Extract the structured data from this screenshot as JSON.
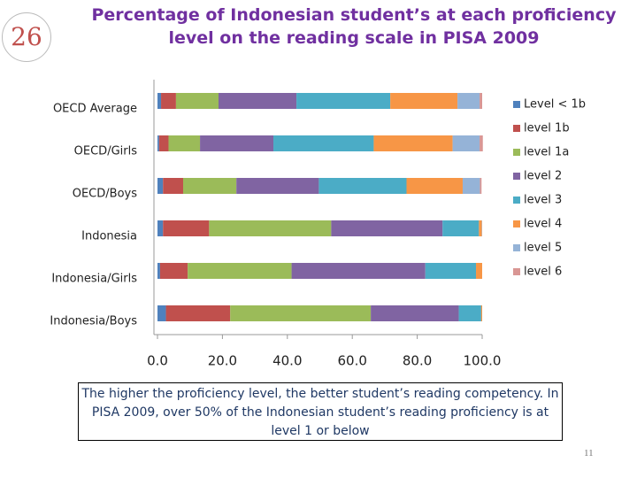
{
  "slide_badge": "26",
  "chart_data": {
    "type": "stacked_barh",
    "title": "Percentage of Indonesian student’s at each proficiency level on the reading scale in PISA 2009",
    "categories": [
      "OECD Average",
      "OECD/Girls",
      "OECD/Boys",
      "Indonesia",
      "Indonesia/Girls",
      "Indonesia/Boys"
    ],
    "series": [
      {
        "name": "Level < 1b",
        "color": "#4f81bd",
        "values": [
          1.1,
          0.5,
          1.7,
          1.7,
          0.8,
          2.6
        ]
      },
      {
        "name": "level 1b",
        "color": "#c0504d",
        "values": [
          4.6,
          2.9,
          6.2,
          14.2,
          8.5,
          19.8
        ]
      },
      {
        "name": "level 1a",
        "color": "#9bbb59",
        "values": [
          13.1,
          9.7,
          16.4,
          37.6,
          32.0,
          43.3
        ]
      },
      {
        "name": "level 2",
        "color": "#8064a2",
        "values": [
          24.0,
          22.6,
          25.4,
          34.3,
          41.2,
          27.1
        ]
      },
      {
        "name": "level 3",
        "color": "#4bacc6",
        "values": [
          28.9,
          30.9,
          27.0,
          11.2,
          15.6,
          6.9
        ]
      },
      {
        "name": "level 4",
        "color": "#f79646",
        "values": [
          20.7,
          24.3,
          17.3,
          0.9,
          1.9,
          0.3
        ]
      },
      {
        "name": "level 5",
        "color": "#95b3d7",
        "values": [
          6.8,
          8.3,
          5.3,
          0.1,
          0.0,
          0.0
        ]
      },
      {
        "name": "level 6",
        "color": "#d99694",
        "values": [
          0.8,
          1.0,
          0.5,
          0.0,
          0.0,
          0.0
        ]
      }
    ],
    "xlim": [
      0,
      100
    ],
    "xticks": [
      {
        "value": 0,
        "label": "0.0"
      },
      {
        "value": 20,
        "label": "20.0"
      },
      {
        "value": 40,
        "label": "40.0"
      },
      {
        "value": 60,
        "label": "60.0"
      },
      {
        "value": 80,
        "label": "80.0"
      },
      {
        "value": 100,
        "label": "100.0"
      }
    ],
    "legend": "right"
  },
  "note": "The higher the proficiency level, the better student’s reading competency. In PISA 2009, over 50% of the Indonesian student’s reading proficiency is at level 1 or below",
  "page_number": "11"
}
